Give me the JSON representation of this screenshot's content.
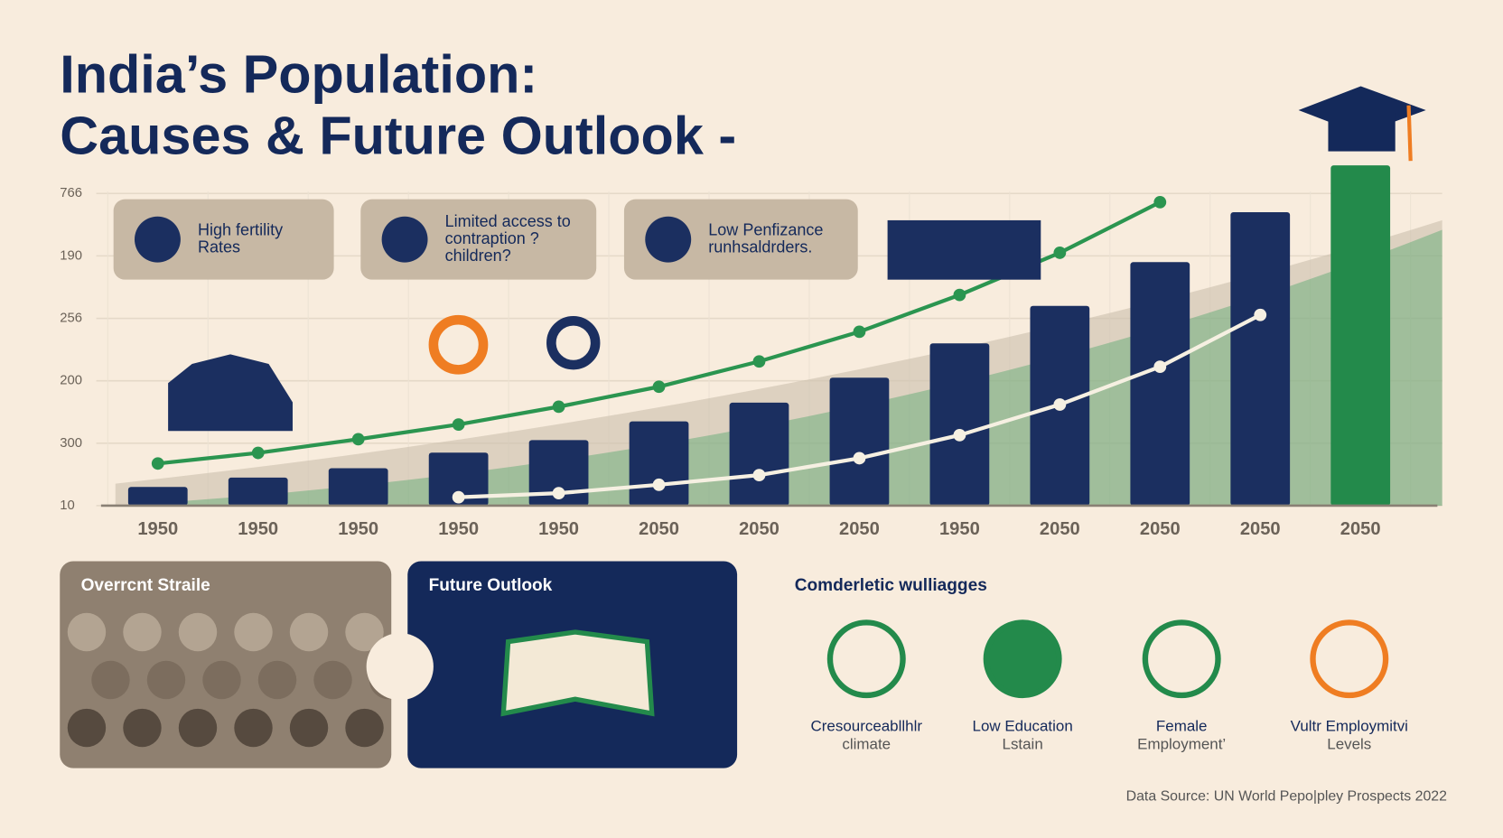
{
  "title_lines": [
    "India’s Population:",
    "Causes & Future Outlook -"
  ],
  "causes": [
    {
      "lines": [
        "High fertility",
        "Rates"
      ]
    },
    {
      "lines": [
        "Limited access to",
        "contraption ?",
        "children?"
      ]
    },
    {
      "lines": [
        "Low Penfizance",
        "runhsaldrders."
      ]
    }
  ],
  "panels": [
    "Overrcnt Straile",
    "Future Outlook"
  ],
  "factors": {
    "title": "Comderletic wulliagges",
    "items": [
      [
        "Cresourceabllhlr",
        "climate"
      ],
      [
        "Low Education",
        "Lstain"
      ],
      [
        "Female",
        "Employment’"
      ],
      [
        "Vultr Employmitvi",
        "Levels"
      ]
    ]
  },
  "source": "Data Source: UN World Pepo|pley Prospects 2022",
  "chart_data": {
    "type": "bar",
    "categories": [
      "1950",
      "1950",
      "1950",
      "1950",
      "1950",
      "2050",
      "2050",
      "2050",
      "1950",
      "2050",
      "2050",
      "2050",
      "2050"
    ],
    "values": [
      6,
      9,
      12,
      17,
      21,
      27,
      33,
      41,
      52,
      64,
      78,
      94,
      109
    ],
    "colors": [
      "#1b2f60",
      "#1b2f60",
      "#1b2f60",
      "#1b2f60",
      "#1b2f60",
      "#1b2f60",
      "#1b2f60",
      "#1b2f60",
      "#1b2f60",
      "#1b2f60",
      "#1b2f60",
      "#1b2f60",
      "#238a4b"
    ],
    "ylim": [
      0,
      110
    ],
    "y_labels": [
      "10",
      "300",
      "200",
      "256",
      "190",
      "766"
    ],
    "lines": [
      {
        "color": "#2b9550",
        "values": [
          13.5,
          16.9,
          21.3,
          26,
          31.7,
          38.1,
          46.2,
          55.7,
          67.5,
          81,
          97.2,
          null,
          null
        ]
      },
      {
        "color": "#f6f0e2",
        "values": [
          null,
          null,
          null,
          2.7,
          4,
          6.7,
          9.8,
          15.2,
          22.6,
          32.4,
          44.5,
          61.1,
          null
        ]
      }
    ]
  }
}
